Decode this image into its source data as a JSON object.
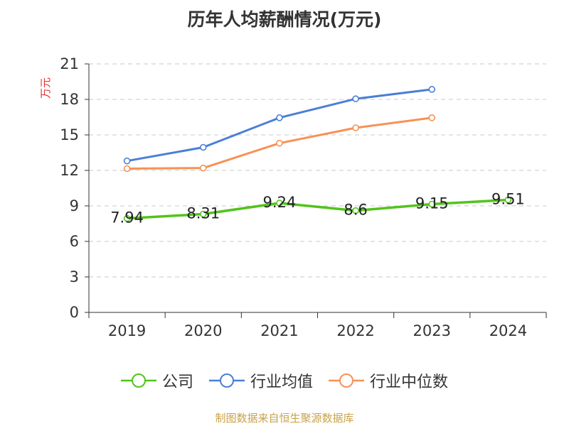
{
  "chart_data": {
    "type": "line",
    "title": "历年人均薪酬情况(万元)",
    "ylabel": "万元",
    "xlabel": "",
    "categories": [
      "2019",
      "2020",
      "2021",
      "2022",
      "2023",
      "2024"
    ],
    "ylim": [
      0,
      21
    ],
    "yticks": [
      0,
      3,
      6,
      9,
      12,
      15,
      18,
      21
    ],
    "grid": true,
    "legend_position": "bottom",
    "series": [
      {
        "name": "公司",
        "color": "#52c41a",
        "values": [
          7.94,
          8.31,
          9.24,
          8.6,
          9.15,
          9.51
        ],
        "labels": [
          "7.94",
          "8.31",
          "9.24",
          "8.6",
          "9.15",
          "9.51"
        ],
        "show_labels": true
      },
      {
        "name": "行业均值",
        "color": "#4a7fd6",
        "values": [
          12.8,
          13.95,
          16.45,
          18.05,
          18.85,
          null
        ],
        "show_labels": false
      },
      {
        "name": "行业中位数",
        "color": "#f79155",
        "values": [
          12.15,
          12.2,
          14.3,
          15.6,
          16.45,
          null
        ],
        "show_labels": false
      }
    ]
  },
  "source": "制图数据来自恒生聚源数据库"
}
